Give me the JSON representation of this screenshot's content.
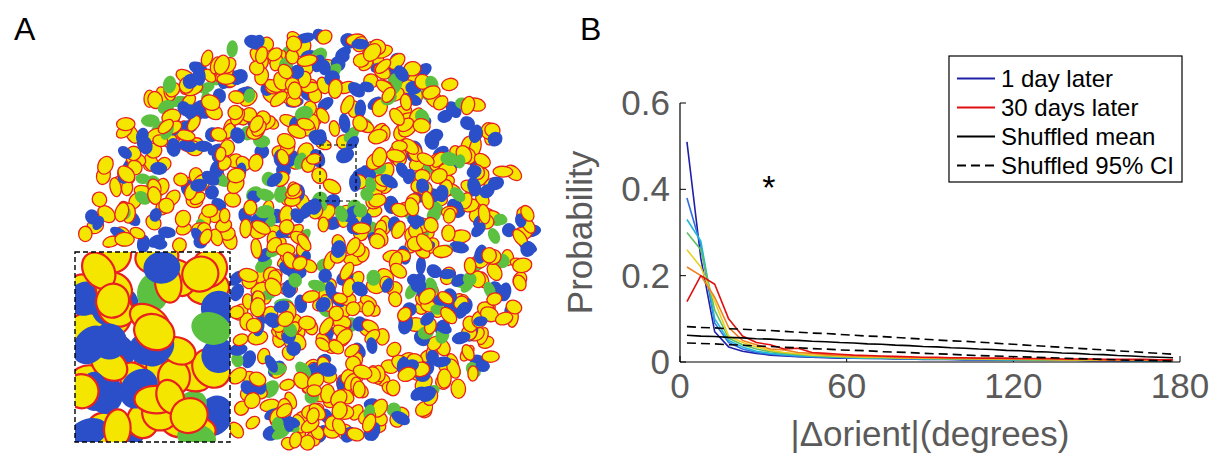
{
  "panel_labels": [
    "A",
    "B"
  ],
  "chart_data": {
    "type": "line",
    "x_label": "|Δorient|(degrees)",
    "y_label": "Probability",
    "xlim": [
      0,
      180
    ],
    "xticks": [
      0,
      60,
      120,
      180
    ],
    "ylim": [
      0,
      0.6
    ],
    "yticks": [
      0,
      0.2,
      0.4,
      0.6
    ],
    "legend": "upper right",
    "annotations": [
      {
        "text": "*",
        "x": 32,
        "y": 0.41
      }
    ],
    "x": [
      2.5,
      7.5,
      12.5,
      17.5,
      22.5,
      27.5,
      32.5,
      37.5,
      42.5,
      47.5,
      52.5,
      57.5,
      62.5,
      67.5,
      72.5,
      77.5,
      82.5,
      87.5,
      92.5,
      97.5,
      102.5,
      107.5,
      112.5,
      117.5,
      122.5,
      127.5,
      132.5,
      137.5,
      142.5,
      147.5,
      152.5,
      157.5,
      162.5,
      167.5,
      172.5,
      177.5
    ],
    "series": [
      {
        "name": "1 day later",
        "color": "#1f1fa8",
        "line_style": "solid",
        "values": [
          0.51,
          0.24,
          0.07,
          0.035,
          0.025,
          0.02,
          0.016,
          0.014,
          0.012,
          0.011,
          0.01,
          0.009,
          0.009,
          0.008,
          0.008,
          0.007,
          0.007,
          0.006,
          0.006,
          0.006,
          0.005,
          0.005,
          0.005,
          0.005,
          0.004,
          0.004,
          0.004,
          0.004,
          0.004,
          0.003,
          0.003,
          0.003,
          0.003,
          0.003,
          0.003,
          0.003
        ]
      },
      {
        "name": null,
        "color": "#2f6fe0",
        "line_style": "solid",
        "values": [
          0.38,
          0.27,
          0.09,
          0.045,
          0.03,
          0.022,
          0.018,
          0.016,
          0.013,
          0.012,
          0.011,
          0.01,
          0.009,
          0.009,
          0.008,
          0.008,
          0.007,
          0.007,
          0.007,
          0.006,
          0.006,
          0.006,
          0.005,
          0.005,
          0.005,
          0.005,
          0.004,
          0.004,
          0.004,
          0.004,
          0.004,
          0.003,
          0.003,
          0.003,
          0.003,
          0.003
        ]
      },
      {
        "name": null,
        "color": "#20b8d8",
        "line_style": "solid",
        "values": [
          0.33,
          0.28,
          0.1,
          0.05,
          0.035,
          0.025,
          0.02,
          0.017,
          0.015,
          0.013,
          0.012,
          0.011,
          0.01,
          0.009,
          0.009,
          0.008,
          0.008,
          0.007,
          0.007,
          0.007,
          0.006,
          0.006,
          0.006,
          0.005,
          0.005,
          0.005,
          0.005,
          0.004,
          0.004,
          0.004,
          0.004,
          0.004,
          0.003,
          0.003,
          0.003,
          0.003
        ]
      },
      {
        "name": null,
        "color": "#60c060",
        "line_style": "solid",
        "values": [
          0.3,
          0.26,
          0.12,
          0.055,
          0.04,
          0.03,
          0.024,
          0.02,
          0.017,
          0.015,
          0.013,
          0.012,
          0.011,
          0.01,
          0.01,
          0.009,
          0.009,
          0.008,
          0.008,
          0.007,
          0.007,
          0.007,
          0.006,
          0.006,
          0.006,
          0.005,
          0.005,
          0.005,
          0.005,
          0.004,
          0.004,
          0.004,
          0.004,
          0.004,
          0.003,
          0.003
        ]
      },
      {
        "name": null,
        "color": "#e8d020",
        "line_style": "solid",
        "values": [
          0.26,
          0.22,
          0.14,
          0.06,
          0.045,
          0.035,
          0.027,
          0.022,
          0.019,
          0.016,
          0.015,
          0.013,
          0.012,
          0.011,
          0.011,
          0.01,
          0.009,
          0.009,
          0.008,
          0.008,
          0.008,
          0.007,
          0.007,
          0.007,
          0.006,
          0.006,
          0.006,
          0.005,
          0.005,
          0.005,
          0.005,
          0.004,
          0.004,
          0.004,
          0.004,
          0.004
        ]
      },
      {
        "name": null,
        "color": "#f08020",
        "line_style": "solid",
        "values": [
          0.22,
          0.2,
          0.15,
          0.08,
          0.05,
          0.04,
          0.03,
          0.028,
          0.022,
          0.02,
          0.017,
          0.015,
          0.014,
          0.013,
          0.012,
          0.011,
          0.01,
          0.01,
          0.009,
          0.009,
          0.008,
          0.008,
          0.008,
          0.007,
          0.007,
          0.007,
          0.006,
          0.006,
          0.006,
          0.006,
          0.005,
          0.005,
          0.005,
          0.005,
          0.004,
          0.004
        ]
      },
      {
        "name": "30 days later",
        "color": "#e01010",
        "line_style": "solid",
        "values": [
          0.14,
          0.2,
          0.18,
          0.1,
          0.06,
          0.045,
          0.04,
          0.03,
          0.032,
          0.022,
          0.02,
          0.018,
          0.016,
          0.015,
          0.014,
          0.013,
          0.012,
          0.011,
          0.011,
          0.01,
          0.01,
          0.009,
          0.009,
          0.009,
          0.008,
          0.008,
          0.008,
          0.007,
          0.007,
          0.007,
          0.006,
          0.006,
          0.006,
          0.006,
          0.005,
          0.005
        ]
      },
      {
        "name": "Shuffled mean",
        "color": "#000000",
        "line_style": "solid",
        "values": [
          0.062,
          0.06,
          0.059,
          0.057,
          0.056,
          0.054,
          0.053,
          0.051,
          0.05,
          0.048,
          0.047,
          0.045,
          0.044,
          0.042,
          0.041,
          0.039,
          0.038,
          0.036,
          0.035,
          0.033,
          0.032,
          0.03,
          0.029,
          0.027,
          0.026,
          0.024,
          0.023,
          0.021,
          0.02,
          0.018,
          0.017,
          0.015,
          0.014,
          0.012,
          0.011,
          0.01
        ]
      },
      {
        "name": "Shuffled 95% CI",
        "color": "#000000",
        "line_style": "dashed",
        "values": [
          0.082,
          0.08,
          0.079,
          0.077,
          0.076,
          0.074,
          0.073,
          0.071,
          0.069,
          0.067,
          0.066,
          0.064,
          0.062,
          0.06,
          0.059,
          0.057,
          0.055,
          0.053,
          0.051,
          0.049,
          0.048,
          0.046,
          0.044,
          0.042,
          0.04,
          0.038,
          0.036,
          0.034,
          0.032,
          0.03,
          0.028,
          0.026,
          0.024,
          0.022,
          0.02,
          0.018
        ]
      },
      {
        "name": null,
        "color": "#000000",
        "line_style": "dashed",
        "values": [
          0.044,
          0.043,
          0.042,
          0.04,
          0.039,
          0.037,
          0.036,
          0.034,
          0.033,
          0.031,
          0.03,
          0.028,
          0.027,
          0.026,
          0.024,
          0.023,
          0.022,
          0.02,
          0.019,
          0.018,
          0.016,
          0.015,
          0.014,
          0.013,
          0.012,
          0.011,
          0.01,
          0.009,
          0.008,
          0.007,
          0.006,
          0.005,
          0.004,
          0.004,
          0.003,
          0.002
        ]
      }
    ]
  }
}
